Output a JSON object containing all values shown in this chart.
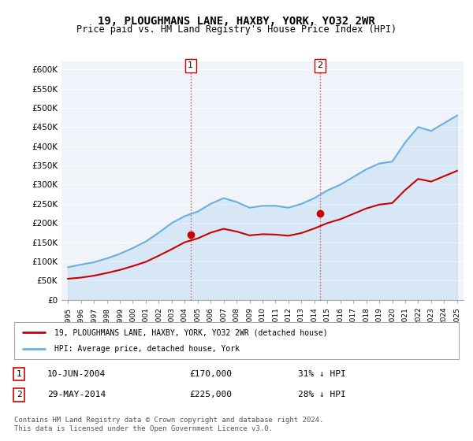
{
  "title": "19, PLOUGHMANS LANE, HAXBY, YORK, YO32 2WR",
  "subtitle": "Price paid vs. HM Land Registry's House Price Index (HPI)",
  "hpi_color": "#6ab0e0",
  "price_color": "#cc0000",
  "marker_color": "#cc0000",
  "background_color": "#f0f4fa",
  "annotation_box_color": "#f0f4fa",
  "purchase1_date": "2004-06-10",
  "purchase1_price": 170000,
  "purchase1_label": "1",
  "purchase2_date": "2014-05-29",
  "purchase2_price": 225000,
  "purchase2_label": "2",
  "purchase1_display": "10-JUN-2004",
  "purchase2_display": "29-MAY-2014",
  "purchase1_pct": "31% ↓ HPI",
  "purchase2_pct": "28% ↓ HPI",
  "legend_label1": "19, PLOUGHMANS LANE, HAXBY, YORK, YO32 2WR (detached house)",
  "legend_label2": "HPI: Average price, detached house, York",
  "footnote": "Contains HM Land Registry data © Crown copyright and database right 2024.\nThis data is licensed under the Open Government Licence v3.0.",
  "ylim_min": 0,
  "ylim_max": 620000,
  "yticks": [
    0,
    50000,
    100000,
    150000,
    200000,
    250000,
    300000,
    350000,
    400000,
    450000,
    500000,
    550000,
    600000
  ],
  "hpi_years": [
    1995,
    1996,
    1997,
    1998,
    1999,
    2000,
    2001,
    2002,
    2003,
    2004,
    2005,
    2006,
    2007,
    2008,
    2009,
    2010,
    2011,
    2012,
    2013,
    2014,
    2015,
    2016,
    2017,
    2018,
    2019,
    2020,
    2021,
    2022,
    2023,
    2024,
    2025
  ],
  "hpi_values": [
    85000,
    92000,
    98000,
    108000,
    120000,
    135000,
    152000,
    175000,
    200000,
    218000,
    230000,
    250000,
    265000,
    255000,
    240000,
    245000,
    245000,
    240000,
    250000,
    265000,
    285000,
    300000,
    320000,
    340000,
    355000,
    360000,
    410000,
    450000,
    440000,
    460000,
    480000
  ],
  "price_years": [
    1995,
    1996,
    1997,
    1998,
    1999,
    2000,
    2001,
    2002,
    2003,
    2004,
    2005,
    2006,
    2007,
    2008,
    2009,
    2010,
    2011,
    2012,
    2013,
    2014,
    2015,
    2016,
    2017,
    2018,
    2019,
    2020,
    2021,
    2022,
    2023,
    2024,
    2025
  ],
  "price_values": [
    55000,
    58000,
    63000,
    70000,
    78000,
    88000,
    99000,
    115000,
    132000,
    150000,
    160000,
    175000,
    185000,
    178000,
    168000,
    171000,
    170000,
    167000,
    174000,
    186000,
    200000,
    210000,
    224000,
    238000,
    248000,
    252000,
    286000,
    315000,
    308000,
    322000,
    336000
  ]
}
